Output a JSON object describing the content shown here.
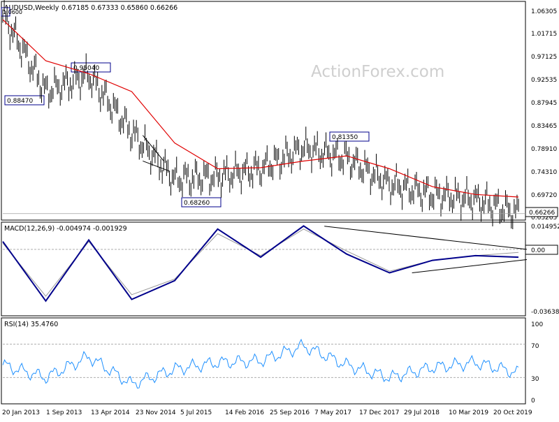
{
  "header": {
    "symbol_label": "AUDUSD,Weekly",
    "ohlc_text": "0.67185 0.67333 0.65860 0.66266",
    "watermark": "ActionForex.com"
  },
  "colors": {
    "price_bars": "#000000",
    "moving_average": "#e00000",
    "macd_line": "#00008b",
    "signal_line": "#9a9a9a",
    "rsi_line": "#1e90ff",
    "trendlines": "#000000",
    "grid_level_lines": "#a0a0a0",
    "last_price_box": "#ffffff"
  },
  "chart_data": [
    {
      "type": "line",
      "title": "AUDUSD,Weekly",
      "y_axis_ticks": [
        "1.06305",
        "1.01715",
        "0.97125",
        "0.92535",
        "0.87945",
        "0.83465",
        "0.78910",
        "0.74310",
        "0.69720",
        "0.65265"
      ],
      "x_axis_ticks": [
        "20 Jan 2013",
        "1 Sep 2013",
        "13 Apr 2014",
        "23 Nov 2014",
        "5 Jul 2015",
        "14 Feb 2016",
        "25 Sep 2016",
        "7 May 2017",
        "17 Dec 2017",
        "29 Jul 2018",
        "10 Mar 2019",
        "20 Oct 2019"
      ],
      "ylim": [
        0.6528,
        1.0728
      ],
      "last_price": "0.66266",
      "annotations": [
        "1.0600",
        "0.88470",
        "0.95040",
        "0.68260",
        "0.81350"
      ],
      "series": [
        {
          "style": "bars",
          "x": [
            "20 Jan 2013",
            "1 Sep 2013",
            "13 Apr 2014",
            "23 Nov 2014",
            "5 Jul 2015",
            "14 Feb 2016",
            "25 Sep 2016",
            "7 May 2017",
            "17 Dec 2017",
            "29 Jul 2018",
            "10 Mar 2019",
            "20 Oct 2019",
            "Dec 2019"
          ],
          "values": [
            1.05,
            0.9,
            0.932,
            0.82,
            0.73,
            0.735,
            0.75,
            0.79,
            0.77,
            0.72,
            0.7,
            0.69,
            0.6627
          ]
        },
        {
          "style": "moving-average",
          "x": [
            "20 Jan 2013",
            "1 Sep 2013",
            "13 Apr 2014",
            "23 Nov 2014",
            "5 Jul 2015",
            "14 Feb 2016",
            "25 Sep 2016",
            "7 May 2017",
            "17 Dec 2017",
            "29 Jul 2018",
            "10 Mar 2019",
            "20 Oct 2019",
            "Dec 2019"
          ],
          "values": [
            1.04,
            0.96,
            0.935,
            0.9,
            0.8,
            0.75,
            0.752,
            0.765,
            0.775,
            0.75,
            0.715,
            0.7,
            0.695
          ]
        }
      ],
      "trendlines": [
        {
          "from": [
            "Dec 2014",
            0.815
          ],
          "to": [
            "Dec 2014",
            0.765
          ]
        },
        {
          "from": [
            "Dec 2014",
            0.765
          ],
          "to": [
            "Jan 2015",
            0.745
          ]
        }
      ]
    },
    {
      "type": "line",
      "title": "MACD(12,26,9) -0.004974 -0.001929",
      "y_axis_ticks": [
        "0.014952",
        "0.00",
        "-0.036389"
      ],
      "ylim": [
        -0.0416,
        0.0165
      ],
      "last_value": "0.00",
      "series": [
        {
          "name": "MACD",
          "x": [
            "20 Jan 2013",
            "1 Sep 2013",
            "13 Apr 2014",
            "23 Nov 2014",
            "5 Jul 2015",
            "14 Feb 2016",
            "25 Sep 2016",
            "7 May 2017",
            "17 Dec 2017",
            "29 Jul 2018",
            "10 Mar 2019",
            "20 Oct 2019",
            "Dec 2019"
          ],
          "values": [
            0.005,
            -0.033,
            0.006,
            -0.032,
            -0.02,
            0.013,
            -0.005,
            0.015,
            -0.003,
            -0.015,
            -0.007,
            -0.004,
            -0.005
          ]
        },
        {
          "name": "Signal",
          "x": [
            "20 Jan 2013",
            "1 Sep 2013",
            "13 Apr 2014",
            "23 Nov 2014",
            "5 Jul 2015",
            "14 Feb 2016",
            "25 Sep 2016",
            "7 May 2017",
            "17 Dec 2017",
            "29 Jul 2018",
            "10 Mar 2019",
            "20 Oct 2019",
            "Dec 2019"
          ],
          "values": [
            0.004,
            -0.03,
            0.005,
            -0.029,
            -0.019,
            0.01,
            -0.004,
            0.013,
            -0.001,
            -0.014,
            -0.007,
            -0.004,
            -0.0019
          ]
        }
      ],
      "trendlines": [
        {
          "from": [
            "May 2017",
            0.0148
          ],
          "to": [
            "Dec 2019",
            0.0
          ]
        },
        {
          "from": [
            "Jul 2018",
            -0.015
          ],
          "to": [
            "Dec 2019",
            -0.0065
          ]
        }
      ]
    },
    {
      "type": "line",
      "title": "RSI(14) 35.4760",
      "y_axis_ticks": [
        "100",
        "70",
        "30",
        "0"
      ],
      "ylim": [
        0,
        100
      ],
      "grid": {
        "levels": [
          70,
          30
        ],
        "style": "dashed"
      },
      "series": [
        {
          "name": "RSI(14)",
          "x": [
            "20 Jan 2013",
            "1 Sep 2013",
            "13 Apr 2014",
            "23 Nov 2014",
            "5 Jul 2015",
            "14 Feb 2016",
            "25 Sep 2016",
            "7 May 2017",
            "17 Dec 2017",
            "29 Jul 2018",
            "10 Mar 2019",
            "20 Oct 2019",
            "Dec 2019"
          ],
          "values": [
            45,
            30,
            55,
            22,
            40,
            48,
            50,
            68,
            45,
            30,
            42,
            48,
            35.48
          ]
        }
      ]
    }
  ]
}
